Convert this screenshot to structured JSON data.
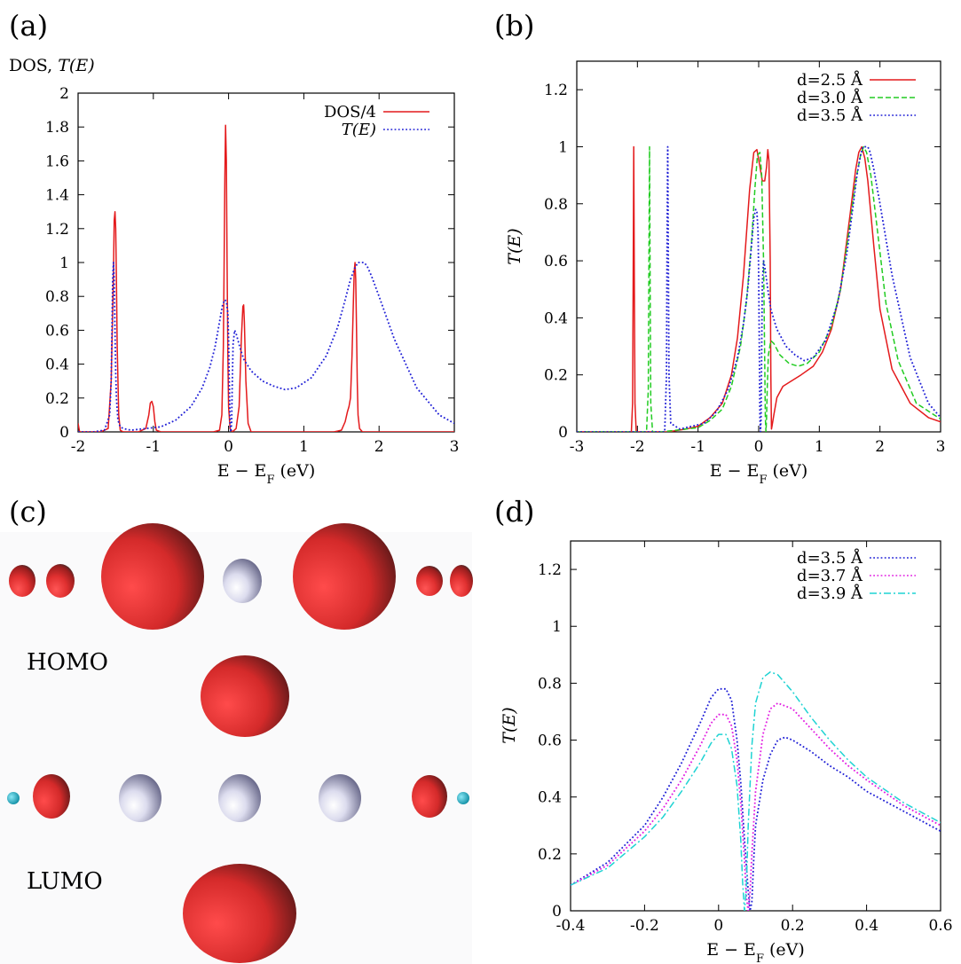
{
  "panels": {
    "a": "(a)",
    "b": "(b)",
    "c": "(c)",
    "d": "(d)"
  },
  "colors": {
    "red": "#e41a1c",
    "blue": "#1f1fd6",
    "green": "#22cc22",
    "magenta": "#e21fe2",
    "cyan": "#1fd3d3",
    "orbital_red": "#d42a2a",
    "orbital_dark": "#2b2b2b",
    "atom_white": "#c9c9e2",
    "atom_cyan": "#18b6d0"
  },
  "structure": {
    "homo_label": "HOMO",
    "lumo_label": "LUMO"
  },
  "chart_data": [
    {
      "panel": "a",
      "type": "line",
      "title": "",
      "ylabel": "DOS, T(E)",
      "xlabel": "E − E_F (eV)",
      "xlim": [
        -2,
        3
      ],
      "ylim": [
        0,
        2
      ],
      "xticks": [
        "-2",
        "-1",
        "0",
        "1",
        "2",
        "3"
      ],
      "yticks": [
        "0",
        "0.2",
        "0.4",
        "0.6",
        "0.8",
        "1",
        "1.2",
        "1.4",
        "1.6",
        "1.8",
        "2"
      ],
      "legend_position": "top-right",
      "series": [
        {
          "name": "DOS/4",
          "color_key": "red",
          "style": "solid",
          "x": [
            -2.0,
            -1.98,
            -1.9,
            -1.7,
            -1.6,
            -1.56,
            -1.53,
            -1.52,
            -1.51,
            -1.5,
            -1.49,
            -1.48,
            -1.46,
            -1.44,
            -1.4,
            -1.2,
            -1.1,
            -1.06,
            -1.04,
            -1.02,
            -1.0,
            -0.98,
            -0.96,
            -0.9,
            -0.5,
            -0.2,
            -0.12,
            -0.09,
            -0.07,
            -0.06,
            -0.05,
            -0.04,
            -0.03,
            -0.02,
            -0.01,
            0.0,
            0.02,
            0.05,
            0.1,
            0.14,
            0.17,
            0.19,
            0.2,
            0.21,
            0.23,
            0.26,
            0.3,
            0.5,
            1.0,
            1.4,
            1.5,
            1.55,
            1.58,
            1.6,
            1.62,
            1.64,
            1.66,
            1.67,
            1.68,
            1.69,
            1.7,
            1.71,
            1.72,
            1.74,
            1.78,
            1.9,
            2.5,
            3.0
          ],
          "y": [
            0.05,
            0.0,
            0.0,
            0.0,
            0.02,
            0.3,
            0.95,
            1.25,
            1.3,
            1.2,
            0.9,
            0.5,
            0.1,
            0.01,
            0.0,
            0.0,
            0.02,
            0.1,
            0.17,
            0.18,
            0.15,
            0.06,
            0.01,
            0.0,
            0.0,
            0.0,
            0.01,
            0.1,
            0.5,
            0.95,
            1.5,
            1.81,
            1.6,
            1.0,
            0.45,
            0.15,
            0.02,
            0.0,
            0.02,
            0.15,
            0.55,
            0.74,
            0.75,
            0.65,
            0.3,
            0.05,
            0.0,
            0.0,
            0.0,
            0.0,
            0.01,
            0.06,
            0.12,
            0.15,
            0.2,
            0.45,
            0.8,
            0.95,
            1.0,
            0.9,
            0.6,
            0.3,
            0.1,
            0.02,
            0.0,
            0.0,
            0.0,
            0.0
          ]
        },
        {
          "name": "T(E)",
          "color_key": "blue",
          "style": "dotted",
          "x": [
            -2.0,
            -1.8,
            -1.65,
            -1.58,
            -1.56,
            -1.55,
            -1.54,
            -1.53,
            -1.52,
            -1.51,
            -1.5,
            -1.49,
            -1.47,
            -1.44,
            -1.4,
            -1.3,
            -1.1,
            -0.9,
            -0.7,
            -0.5,
            -0.35,
            -0.25,
            -0.18,
            -0.12,
            -0.08,
            -0.05,
            -0.03,
            -0.01,
            0.0,
            0.01,
            0.02,
            0.03,
            0.04,
            0.05,
            0.06,
            0.08,
            0.1,
            0.15,
            0.2,
            0.3,
            0.45,
            0.6,
            0.75,
            0.9,
            1.1,
            1.3,
            1.45,
            1.55,
            1.62,
            1.68,
            1.72,
            1.76,
            1.8,
            1.84,
            1.9,
            2.0,
            2.2,
            2.5,
            2.8,
            3.0
          ],
          "y": [
            0.0,
            0.0,
            0.01,
            0.1,
            0.3,
            0.6,
            0.9,
            1.0,
            0.9,
            0.6,
            0.35,
            0.2,
            0.07,
            0.03,
            0.02,
            0.01,
            0.02,
            0.03,
            0.07,
            0.15,
            0.26,
            0.38,
            0.5,
            0.65,
            0.75,
            0.78,
            0.77,
            0.7,
            0.55,
            0.3,
            0.05,
            0.0,
            0.05,
            0.3,
            0.52,
            0.6,
            0.58,
            0.5,
            0.43,
            0.36,
            0.3,
            0.27,
            0.25,
            0.26,
            0.32,
            0.45,
            0.62,
            0.78,
            0.9,
            0.97,
            1.0,
            1.0,
            1.0,
            0.98,
            0.92,
            0.8,
            0.55,
            0.26,
            0.1,
            0.05
          ]
        }
      ]
    },
    {
      "panel": "b",
      "type": "line",
      "title": "",
      "ylabel": "T(E)",
      "xlabel": "E − E_F (eV)",
      "xlim": [
        -3,
        3
      ],
      "ylim": [
        0,
        1.3
      ],
      "xticks": [
        "-3",
        "-2",
        "-1",
        "0",
        "1",
        "2",
        "3"
      ],
      "yticks": [
        "0",
        "0.2",
        "0.4",
        "0.6",
        "0.8",
        "1",
        "1.2"
      ],
      "legend_position": "top-right",
      "series": [
        {
          "name": "d=2.5 Å",
          "color_key": "red",
          "style": "solid",
          "x": [
            -3.0,
            -2.2,
            -2.1,
            -2.08,
            -2.07,
            -2.06,
            -2.05,
            -2.04,
            -2.02,
            -1.9,
            -1.5,
            -1.2,
            -1.0,
            -0.8,
            -0.6,
            -0.45,
            -0.35,
            -0.25,
            -0.15,
            -0.08,
            -0.03,
            0.02,
            0.06,
            0.1,
            0.13,
            0.15,
            0.17,
            0.19,
            0.2,
            0.21,
            0.22,
            0.25,
            0.3,
            0.4,
            0.55,
            0.7,
            0.9,
            1.05,
            1.2,
            1.35,
            1.5,
            1.6,
            1.65,
            1.7,
            1.75,
            1.8,
            1.9,
            2.0,
            2.2,
            2.5,
            2.8,
            3.0
          ],
          "y": [
            0.0,
            0.0,
            0.0,
            0.1,
            0.5,
            1.0,
            0.5,
            0.1,
            0.0,
            0.0,
            0.0,
            0.01,
            0.02,
            0.05,
            0.1,
            0.2,
            0.33,
            0.55,
            0.85,
            0.98,
            0.99,
            0.93,
            0.88,
            0.88,
            0.93,
            0.99,
            0.95,
            0.6,
            0.2,
            0.01,
            0.02,
            0.06,
            0.12,
            0.16,
            0.18,
            0.2,
            0.23,
            0.28,
            0.36,
            0.5,
            0.75,
            0.92,
            0.98,
            1.0,
            0.96,
            0.88,
            0.65,
            0.43,
            0.22,
            0.1,
            0.05,
            0.035
          ]
        },
        {
          "name": "d=3.0 Å",
          "color_key": "green",
          "style": "dashed",
          "x": [
            -3.0,
            -2.0,
            -1.85,
            -1.82,
            -1.81,
            -1.8,
            -1.79,
            -1.78,
            -1.75,
            -1.6,
            -1.2,
            -1.0,
            -0.8,
            -0.6,
            -0.45,
            -0.3,
            -0.2,
            -0.12,
            -0.06,
            -0.02,
            0.02,
            0.05,
            0.08,
            0.1,
            0.11,
            0.12,
            0.13,
            0.14,
            0.16,
            0.2,
            0.25,
            0.35,
            0.5,
            0.65,
            0.8,
            1.0,
            1.2,
            1.35,
            1.5,
            1.6,
            1.68,
            1.73,
            1.78,
            1.85,
            1.95,
            2.1,
            2.3,
            2.6,
            3.0
          ],
          "y": [
            0.0,
            0.0,
            0.0,
            0.15,
            0.6,
            1.0,
            0.5,
            0.1,
            0.0,
            0.0,
            0.01,
            0.015,
            0.04,
            0.08,
            0.16,
            0.3,
            0.46,
            0.66,
            0.86,
            0.97,
            0.98,
            0.9,
            0.6,
            0.25,
            0.05,
            0.0,
            0.05,
            0.15,
            0.27,
            0.32,
            0.31,
            0.27,
            0.24,
            0.23,
            0.24,
            0.28,
            0.37,
            0.5,
            0.72,
            0.88,
            0.97,
            1.0,
            0.98,
            0.9,
            0.72,
            0.45,
            0.25,
            0.1,
            0.045
          ]
        },
        {
          "name": "d=3.5 Å",
          "color_key": "blue",
          "style": "dotted",
          "x": [
            -3.0,
            -1.7,
            -1.55,
            -1.52,
            -1.51,
            -1.5,
            -1.49,
            -1.48,
            -1.45,
            -1.3,
            -1.1,
            -0.9,
            -0.7,
            -0.5,
            -0.35,
            -0.25,
            -0.18,
            -0.12,
            -0.08,
            -0.05,
            -0.03,
            -0.01,
            0.0,
            0.01,
            0.02,
            0.03,
            0.04,
            0.05,
            0.06,
            0.08,
            0.1,
            0.15,
            0.2,
            0.3,
            0.45,
            0.6,
            0.75,
            0.9,
            1.1,
            1.3,
            1.45,
            1.55,
            1.62,
            1.68,
            1.72,
            1.76,
            1.8,
            1.84,
            1.9,
            2.0,
            2.2,
            2.5,
            2.8,
            3.0
          ],
          "y": [
            0.0,
            0.0,
            0.0,
            0.2,
            0.7,
            1.0,
            0.6,
            0.2,
            0.03,
            0.01,
            0.02,
            0.03,
            0.07,
            0.15,
            0.26,
            0.38,
            0.5,
            0.65,
            0.75,
            0.78,
            0.77,
            0.7,
            0.55,
            0.3,
            0.05,
            0.0,
            0.05,
            0.3,
            0.52,
            0.6,
            0.58,
            0.5,
            0.43,
            0.36,
            0.3,
            0.27,
            0.25,
            0.26,
            0.32,
            0.45,
            0.62,
            0.78,
            0.9,
            0.97,
            1.0,
            1.0,
            1.0,
            0.98,
            0.92,
            0.8,
            0.55,
            0.26,
            0.1,
            0.05
          ]
        }
      ]
    },
    {
      "panel": "d",
      "type": "line",
      "title": "",
      "ylabel": "T(E)",
      "xlabel": "E − E_F (eV)",
      "xlim": [
        -0.4,
        0.6
      ],
      "ylim": [
        0,
        1.3
      ],
      "xticks": [
        "-0.4",
        "-0.2",
        "0",
        "0.2",
        "0.4",
        "0.6"
      ],
      "yticks": [
        "0",
        "0.2",
        "0.4",
        "0.6",
        "0.8",
        "1",
        "1.2"
      ],
      "legend_position": "top-right",
      "series": [
        {
          "name": "d=3.5 Å",
          "color_key": "blue",
          "style": "dotted",
          "x": [
            -0.4,
            -0.3,
            -0.2,
            -0.15,
            -0.1,
            -0.05,
            -0.02,
            0.0,
            0.02,
            0.035,
            0.05,
            0.06,
            0.07,
            0.08,
            0.085,
            0.09,
            0.095,
            0.1,
            0.12,
            0.14,
            0.16,
            0.18,
            0.2,
            0.25,
            0.3,
            0.35,
            0.4,
            0.5,
            0.6
          ],
          "y": [
            0.09,
            0.17,
            0.3,
            0.4,
            0.52,
            0.66,
            0.75,
            0.78,
            0.78,
            0.74,
            0.6,
            0.45,
            0.25,
            0.07,
            0.0,
            0.03,
            0.18,
            0.3,
            0.46,
            0.55,
            0.6,
            0.61,
            0.6,
            0.56,
            0.51,
            0.47,
            0.42,
            0.35,
            0.28
          ]
        },
        {
          "name": "d=3.7 Å",
          "color_key": "magenta",
          "style": "dotted",
          "x": [
            -0.4,
            -0.3,
            -0.2,
            -0.15,
            -0.1,
            -0.05,
            -0.02,
            0.0,
            0.02,
            0.035,
            0.05,
            0.06,
            0.07,
            0.075,
            0.08,
            0.085,
            0.09,
            0.1,
            0.12,
            0.14,
            0.16,
            0.2,
            0.25,
            0.3,
            0.35,
            0.4,
            0.5,
            0.6
          ],
          "y": [
            0.09,
            0.16,
            0.28,
            0.36,
            0.46,
            0.58,
            0.66,
            0.69,
            0.69,
            0.65,
            0.53,
            0.38,
            0.18,
            0.05,
            0.0,
            0.06,
            0.2,
            0.42,
            0.62,
            0.71,
            0.73,
            0.71,
            0.64,
            0.57,
            0.51,
            0.46,
            0.37,
            0.3
          ]
        },
        {
          "name": "d=3.9 Å",
          "color_key": "cyan",
          "style": "dashdot",
          "x": [
            -0.4,
            -0.3,
            -0.2,
            -0.15,
            -0.1,
            -0.05,
            -0.02,
            0.0,
            0.02,
            0.035,
            0.05,
            0.06,
            0.065,
            0.07,
            0.075,
            0.08,
            0.09,
            0.1,
            0.12,
            0.14,
            0.16,
            0.2,
            0.25,
            0.3,
            0.35,
            0.4,
            0.5,
            0.6
          ],
          "y": [
            0.09,
            0.15,
            0.26,
            0.33,
            0.42,
            0.52,
            0.59,
            0.62,
            0.62,
            0.57,
            0.44,
            0.25,
            0.1,
            0.0,
            0.08,
            0.3,
            0.58,
            0.73,
            0.82,
            0.84,
            0.83,
            0.77,
            0.68,
            0.6,
            0.53,
            0.47,
            0.38,
            0.31
          ]
        }
      ]
    }
  ]
}
